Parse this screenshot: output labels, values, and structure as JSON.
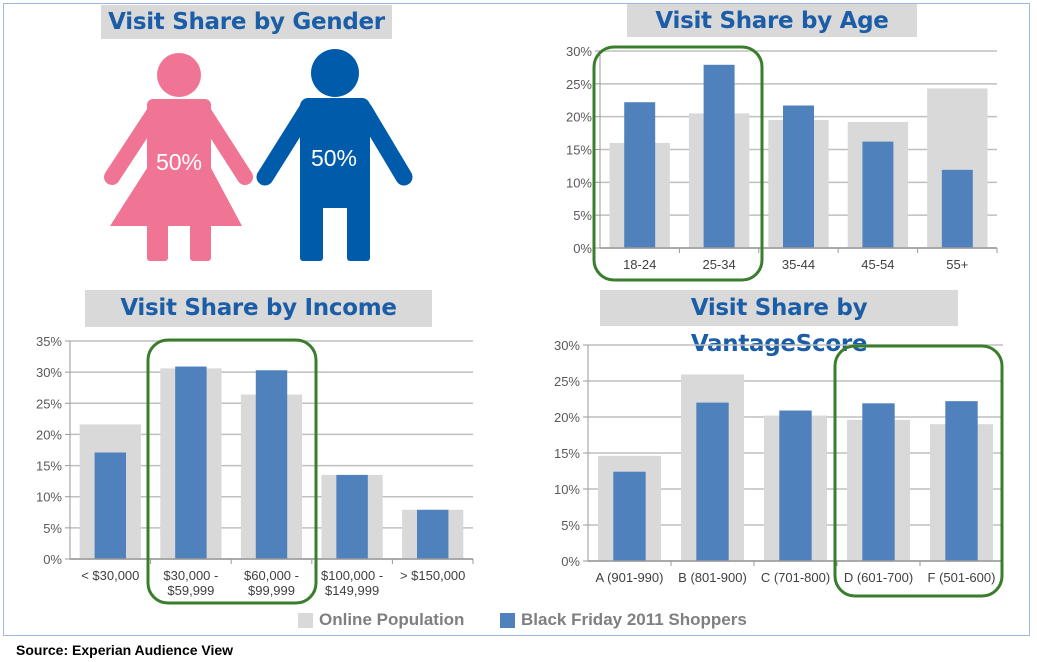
{
  "gender": {
    "title": "Visit Share by Gender",
    "female_pct": "50%",
    "male_pct": "50%",
    "female_color": "#f07595",
    "male_color": "#005bab"
  },
  "legend": {
    "online": "Online Population",
    "black_friday": "Black Friday 2011 Shoppers"
  },
  "source": "Source: Experian Audience View",
  "colors": {
    "online": "#d9d9d9",
    "black_friday": "#4f81bd",
    "highlight": "#3a7d2c",
    "title_text": "#1b5da6"
  },
  "chart_data": [
    {
      "id": "age",
      "type": "bar",
      "title": "Visit Share by Age",
      "categories": [
        "18-24",
        "25-34",
        "35-44",
        "45-54",
        "55+"
      ],
      "yticks": [
        "0%",
        "5%",
        "10%",
        "15%",
        "20%",
        "25%",
        "30%"
      ],
      "ylim": [
        0,
        30
      ],
      "grid": true,
      "highlighted_categories": [
        "18-24",
        "25-34"
      ],
      "series": [
        {
          "name": "Online Population",
          "values": [
            16.0,
            20.5,
            19.5,
            19.2,
            24.3
          ]
        },
        {
          "name": "Black Friday 2011 Shoppers",
          "values": [
            22.2,
            27.9,
            21.7,
            16.2,
            11.9
          ]
        }
      ]
    },
    {
      "id": "income",
      "type": "bar",
      "title": "Visit Share by Income",
      "categories": [
        "< $30,000",
        "$30,000 -|$59,999",
        "$60,000 -|$99,999",
        "$100,000 -|$149,999",
        "> $150,000"
      ],
      "yticks": [
        "0%",
        "5%",
        "10%",
        "15%",
        "20%",
        "25%",
        "30%",
        "35%"
      ],
      "ylim": [
        0,
        35
      ],
      "grid": true,
      "highlighted_categories": [
        "$30,000 -|$59,999",
        "$60,000 -|$99,999"
      ],
      "series": [
        {
          "name": "Online Population",
          "values": [
            21.6,
            30.6,
            26.4,
            13.5,
            7.9
          ]
        },
        {
          "name": "Black Friday 2011 Shoppers",
          "values": [
            17.1,
            30.9,
            30.3,
            13.5,
            7.9
          ]
        }
      ]
    },
    {
      "id": "vantage",
      "type": "bar",
      "title": "Visit Share by VantageScore",
      "categories": [
        "A (901-990)",
        "B (801-900)",
        "C (701-800)",
        "D (601-700)",
        "F (501-600)"
      ],
      "yticks": [
        "0%",
        "5%",
        "10%",
        "15%",
        "20%",
        "25%",
        "30%"
      ],
      "ylim": [
        0,
        30
      ],
      "grid": true,
      "highlighted_categories": [
        "D (601-700)",
        "F (501-600)"
      ],
      "series": [
        {
          "name": "Online Population",
          "values": [
            14.6,
            25.9,
            20.2,
            19.6,
            19.0
          ]
        },
        {
          "name": "Black Friday 2011 Shoppers",
          "values": [
            12.4,
            22.0,
            20.9,
            21.9,
            22.2
          ]
        }
      ]
    }
  ]
}
